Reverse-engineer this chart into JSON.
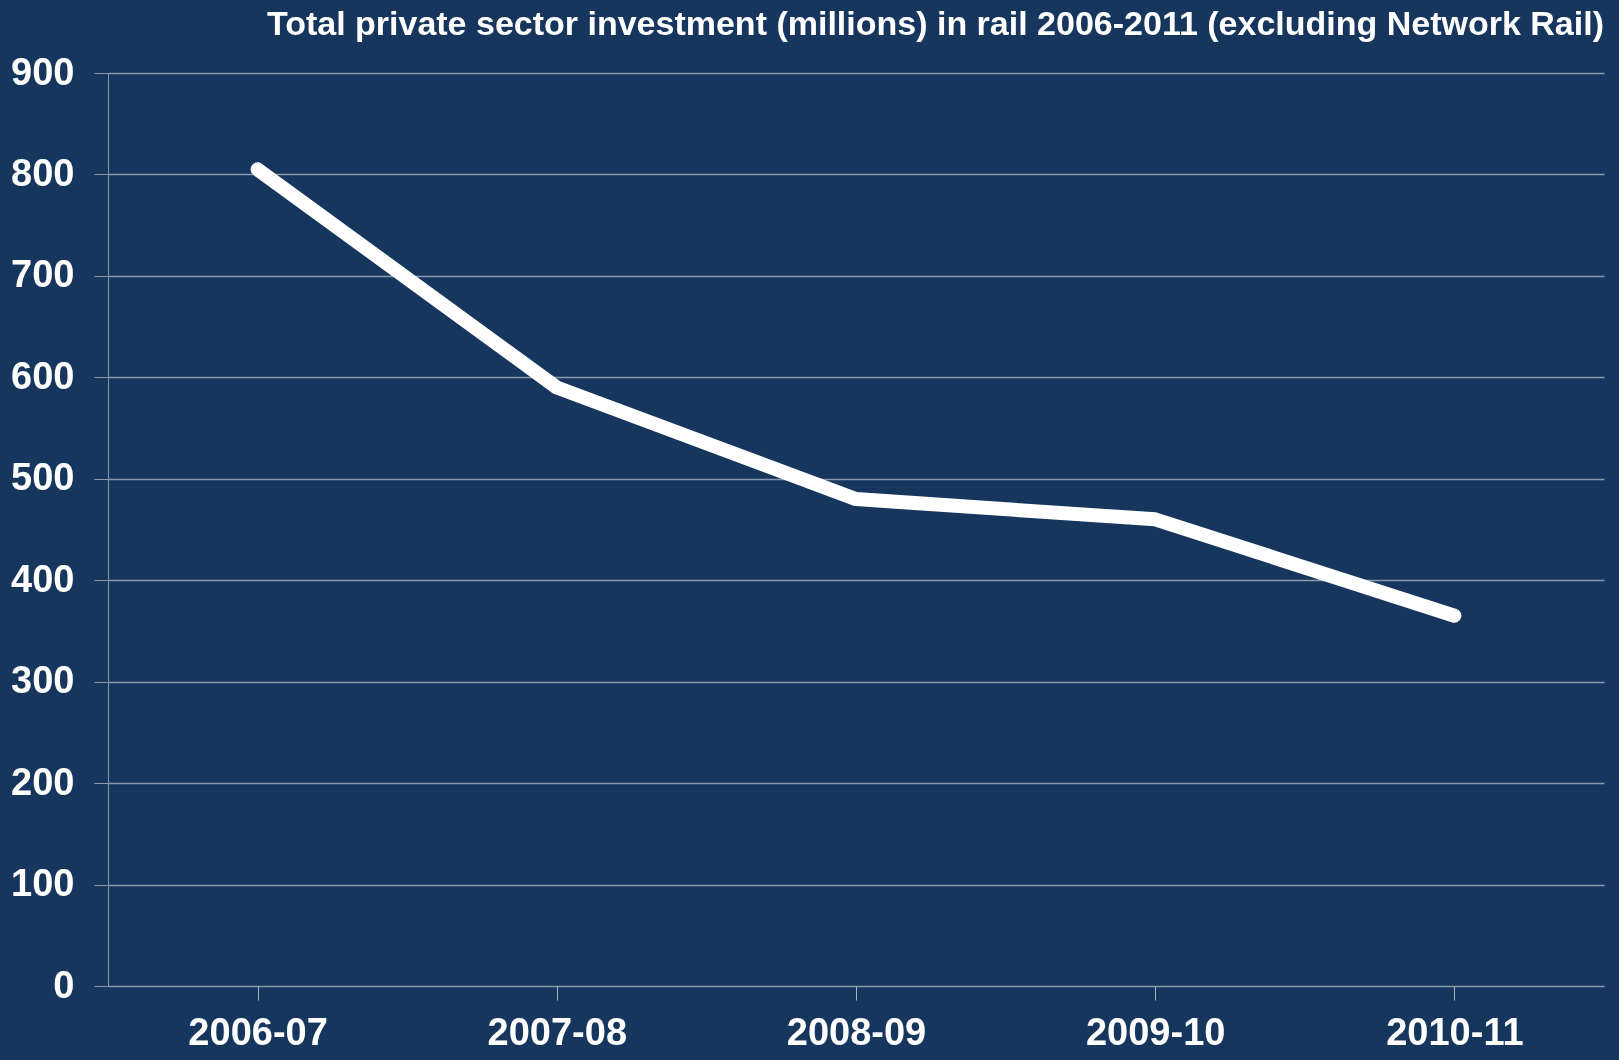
{
  "chart_data": {
    "type": "line",
    "title": "Total private sector investment (millions) in rail 2006-2011 (excluding Network Rail)",
    "categories": [
      "2006-07",
      "2007-08",
      "2008-09",
      "2009-10",
      "2010-11"
    ],
    "series": [
      {
        "color": "#ffffff",
        "values": [
          805,
          590,
          480,
          460,
          365
        ]
      }
    ],
    "ylim": [
      0,
      900
    ],
    "yticks": [
      0,
      100,
      200,
      300,
      400,
      500,
      600,
      700,
      800,
      900
    ],
    "grid": "y",
    "marker": "none",
    "line_style": "solid"
  }
}
